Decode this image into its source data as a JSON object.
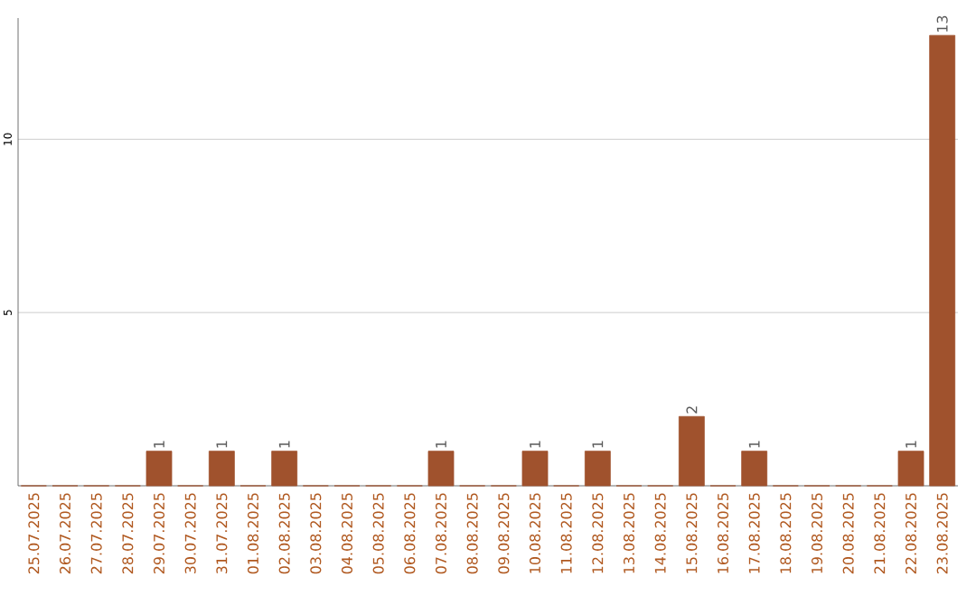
{
  "chart_data": {
    "type": "bar",
    "categories": [
      "25.07.2025",
      "26.07.2025",
      "27.07.2025",
      "28.07.2025",
      "29.07.2025",
      "30.07.2025",
      "31.07.2025",
      "01.08.2025",
      "02.08.2025",
      "03.08.2025",
      "04.08.2025",
      "05.08.2025",
      "06.08.2025",
      "07.08.2025",
      "08.08.2025",
      "09.08.2025",
      "10.08.2025",
      "11.08.2025",
      "12.08.2025",
      "13.08.2025",
      "14.08.2025",
      "15.08.2025",
      "16.08.2025",
      "17.08.2025",
      "18.08.2025",
      "19.08.2025",
      "20.08.2025",
      "21.08.2025",
      "22.08.2025",
      "23.08.2025"
    ],
    "values": [
      0,
      0,
      0,
      0,
      1,
      0,
      1,
      0,
      1,
      0,
      0,
      0,
      0,
      1,
      0,
      0,
      1,
      0,
      1,
      0,
      0,
      2,
      0,
      1,
      0,
      0,
      0,
      0,
      1,
      13
    ],
    "value_labels": [
      null,
      null,
      null,
      null,
      "1",
      null,
      "1",
      null,
      "1",
      null,
      null,
      null,
      null,
      "1",
      null,
      null,
      "1",
      null,
      "1",
      null,
      null,
      "2",
      null,
      "1",
      null,
      null,
      null,
      null,
      "1",
      "13"
    ],
    "color": "#a0522d",
    "ylim": [
      0,
      13.5
    ],
    "yticks": [
      5,
      10
    ],
    "grid": "y"
  }
}
